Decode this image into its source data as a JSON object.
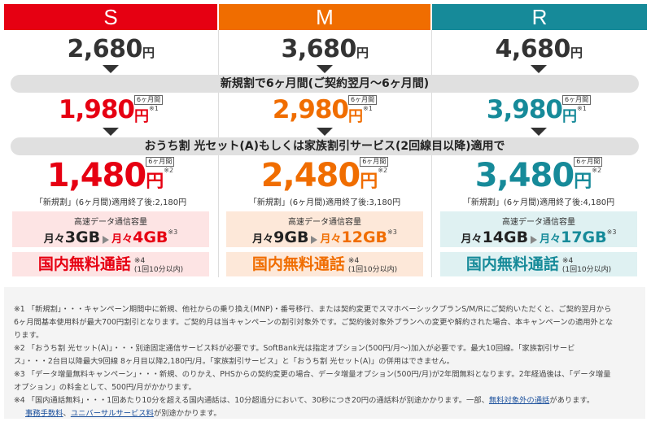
{
  "plans": [
    {
      "name": "S",
      "color": "#e60012",
      "base": "2,680",
      "discount6": "1,980",
      "discount6_note": "※1",
      "bundle": "1,480",
      "bundle_note": "※2",
      "after": "「新規割」(6ヶ月間)適用終了後:2,180円",
      "box_bg": "#fde4e4",
      "data_label": "高速データ通信容量",
      "data_from_pre": "月々",
      "data_from": "3GB",
      "data_to_pre": "月々",
      "data_to": "4GB",
      "data_note": "※3",
      "call_bg": "#fde4e4",
      "call": "国内無料通話",
      "call_note": "※4",
      "call_sub": "(1回10分以内)"
    },
    {
      "name": "M",
      "color": "#f06d00",
      "base": "3,680",
      "discount6": "2,980",
      "discount6_note": "※1",
      "bundle": "2,480",
      "bundle_note": "※2",
      "after": "「新規割」(6ヶ月間)適用終了後:3,180円",
      "box_bg": "#fde8d9",
      "data_label": "高速データ通信容量",
      "data_from_pre": "月々",
      "data_from": "9GB",
      "data_to_pre": "月々",
      "data_to": "12GB",
      "data_note": "※3",
      "call_bg": "#fde8d9",
      "call": "国内無料通話",
      "call_note": "※4",
      "call_sub": "(1回10分以内)"
    },
    {
      "name": "R",
      "color": "#168a99",
      "base": "4,680",
      "discount6": "3,980",
      "discount6_note": "※1",
      "bundle": "3,480",
      "bundle_note": "※2",
      "after": "「新規割」(6ヶ月間)適用終了後:4,180円",
      "box_bg": "#dff1f2",
      "data_label": "高速データ通信容量",
      "data_from_pre": "月々",
      "data_from": "14GB",
      "data_to_pre": "月々",
      "data_to": "17GB",
      "data_note": "※3",
      "call_bg": "#dff1f2",
      "call": "国内無料通話",
      "call_note": "※4",
      "call_sub": "(1回10分以内)"
    }
  ],
  "yen": "円",
  "six_months_tag": "6ヶ月間",
  "band1": "新規割で6ヶ月間(ご契約翌月〜6ヶ月間)",
  "band2": "おうち割 光セット(A)もしくは家族割引サービス(2回線目以降)適用で",
  "footnotes": {
    "n1_line1": "※1 「新規割」・・・キャンペーン期間中に新規、他社からの乗り換え(MNP)・番号移行、または契約変更でスマホベーシックプランS/M/Rにご契約いただくと、ご契約翌月から",
    "n1_line2": "6ヶ月間基本使用料が最大700円割引となります。ご契約月は当キャンペーンの割引対象外です。ご契約後対象外プランへの変更や解約された場合、本キャンペーンの適用外とな",
    "n1_line3": "ります。",
    "n2_line1": "※2 「おうち割 光セット(A)」・・・別途固定通信サービス料が必要です。SoftBank光は指定オプション(500円/月〜)加入が必要です。最大10回線。「家族割引サービ",
    "n2_line2": "ス」・・・2台目以降最大9回線 8ヶ月目以降2,180円/月。「家族割引サービス」と「おうち割 光セット(A)」の併用はできません。",
    "n3_line1": "※3 「データ増量無料キャンペーン」・・・新規、のりかえ、PHSからの契約変更の場合、データ増量オプション(500円/月)が2年間無料となります。2年経過後は、「データ増量",
    "n3_line2": "オプション」の料金として、500円/月がかかります。",
    "n4_line1_pre": "※4 「国内通話無料」・・・1回あたり10分を超える国内通話は、10分超過分において、30秒につき20円の通話料が別途かかります。一部、",
    "n4_link1": "無料対象外の通話",
    "n4_line1_post": "があります。",
    "n4_link2": "事務手数料",
    "n4_sep": "、",
    "n4_link3": "ユニバーサルサービス料",
    "n4_line2_post": "が別途かかります。"
  }
}
